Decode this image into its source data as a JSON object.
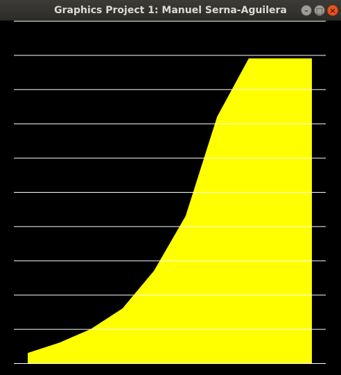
{
  "window": {
    "title": "Graphics Project 1: Manuel Serna-Aguilera",
    "controls": {
      "minimize": "–",
      "maximize": "□",
      "close": "×"
    }
  },
  "colors": {
    "fill": "#ffff00",
    "grid": "#ffffff",
    "background": "#000000"
  },
  "chart_data": {
    "type": "area",
    "title": "",
    "xlabel": "",
    "ylabel": "",
    "x": [
      0,
      1,
      2,
      3,
      4,
      5,
      6,
      7,
      8,
      9
    ],
    "values": [
      0.3,
      0.6,
      1.0,
      1.6,
      2.7,
      4.3,
      7.2,
      8.9,
      8.9,
      8.9
    ],
    "ylim": [
      0,
      10
    ],
    "gridlines": 10,
    "grid": true
  }
}
